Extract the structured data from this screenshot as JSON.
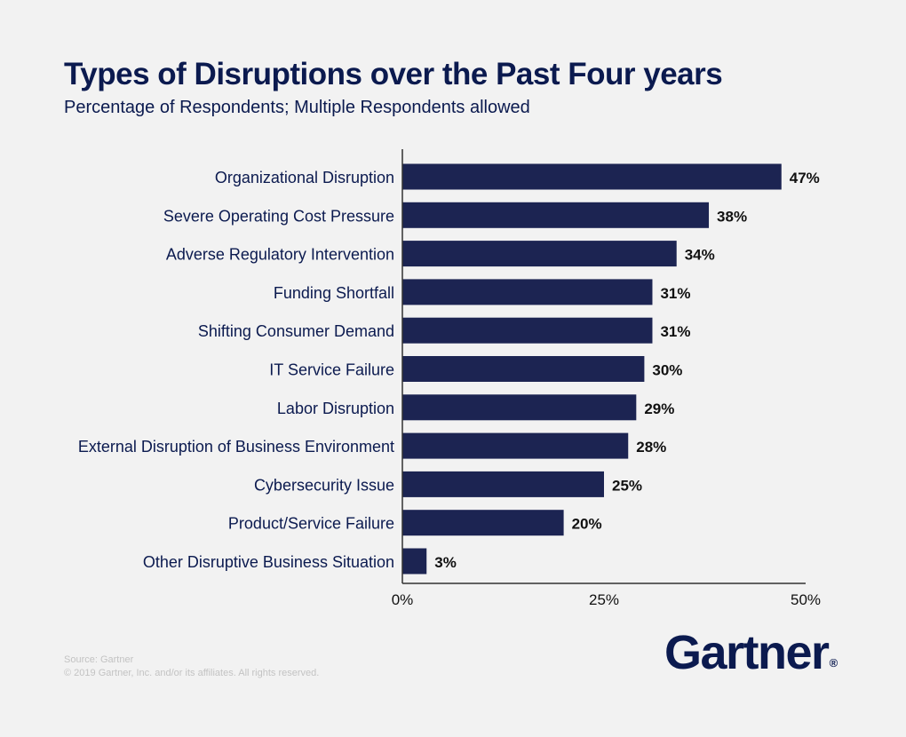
{
  "chart_data": {
    "type": "bar",
    "orientation": "horizontal",
    "title": "Types of Disruptions over the Past Four years",
    "subtitle": "Percentage of Respondents; Multiple Respondents allowed",
    "categories": [
      "Organizational Disruption",
      "Severe Operating Cost Pressure",
      "Adverse Regulatory Intervention",
      "Funding Shortfall",
      "Shifting Consumer Demand",
      "IT Service Failure",
      "Labor Disruption",
      "External Disruption of Business Environment",
      "Cybersecurity Issue",
      "Product/Service Failure",
      "Other Disruptive Business Situation"
    ],
    "values": [
      47,
      38,
      34,
      31,
      31,
      30,
      29,
      28,
      25,
      20,
      3
    ],
    "value_labels": [
      "47%",
      "38%",
      "34%",
      "31%",
      "31%",
      "30%",
      "29%",
      "28%",
      "25%",
      "20%",
      "3%"
    ],
    "xlim": [
      0,
      50
    ],
    "xticks": [
      0,
      25,
      50
    ],
    "xtick_labels": [
      "0%",
      "25%",
      "50%"
    ],
    "grid": false,
    "colors": {
      "bar": "#1c2452",
      "axis": "#333333",
      "text": "#0b1a4f"
    }
  },
  "footer": {
    "source": "Source: Gartner",
    "copyright": "© 2019 Gartner, Inc. and/or its affiliates. All rights reserved."
  },
  "logo": {
    "text": "Gartner",
    "mark": "®"
  }
}
